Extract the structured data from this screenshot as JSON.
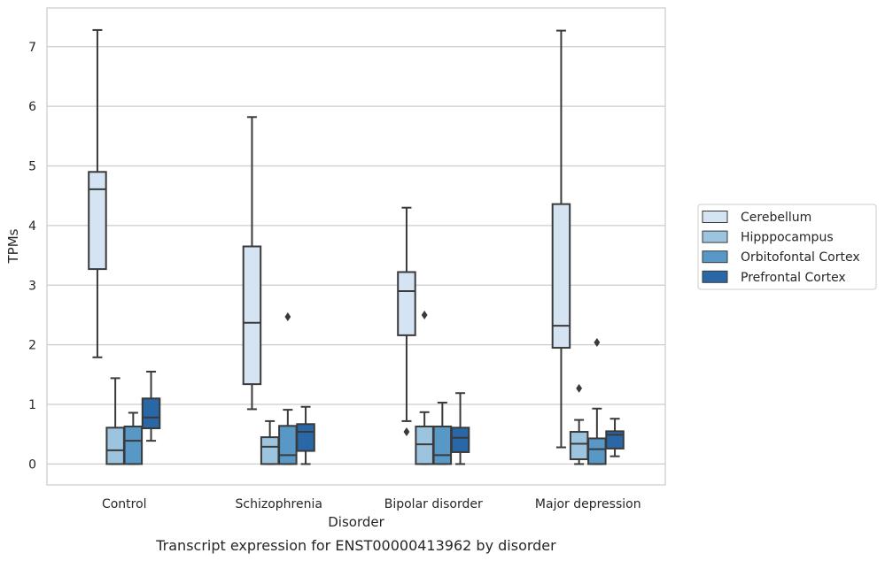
{
  "caption": "Transcript expression for ENST00000413962 by disorder",
  "chart_data": {
    "type": "box",
    "xlabel": "Disorder",
    "ylabel": "TPMs",
    "ylim": [
      -0.35,
      7.65
    ],
    "yticks": [
      0,
      1,
      2,
      3,
      4,
      5,
      6,
      7
    ],
    "grid": "horizontal",
    "legend_position": "right",
    "categories": [
      "Control",
      "Schizophrenia",
      "Bipolar disorder",
      "Major depression"
    ],
    "series": [
      {
        "name": "Cerebellum",
        "color": "#d4e4f2",
        "boxes": [
          {
            "whisker_low": 1.79,
            "q1": 3.27,
            "median": 4.61,
            "q3": 4.9,
            "whisker_high": 7.28,
            "outliers": []
          },
          {
            "whisker_low": 0.92,
            "q1": 1.34,
            "median": 2.37,
            "q3": 3.65,
            "whisker_high": 5.82,
            "outliers": []
          },
          {
            "whisker_low": 0.72,
            "q1": 2.16,
            "median": 2.9,
            "q3": 3.22,
            "whisker_high": 4.3,
            "outliers": [
              0.54
            ]
          },
          {
            "whisker_low": 0.28,
            "q1": 1.95,
            "median": 2.32,
            "q3": 4.36,
            "whisker_high": 7.27,
            "outliers": []
          }
        ]
      },
      {
        "name": "Hipppocampus",
        "color": "#9cc4df",
        "boxes": [
          {
            "whisker_low": 0.0,
            "q1": 0.0,
            "median": 0.23,
            "q3": 0.61,
            "whisker_high": 1.44,
            "outliers": []
          },
          {
            "whisker_low": 0.0,
            "q1": 0.0,
            "median": 0.29,
            "q3": 0.45,
            "whisker_high": 0.72,
            "outliers": []
          },
          {
            "whisker_low": 0.0,
            "q1": 0.0,
            "median": 0.33,
            "q3": 0.63,
            "whisker_high": 0.87,
            "outliers": [
              2.5
            ]
          },
          {
            "whisker_low": 0.0,
            "q1": 0.08,
            "median": 0.34,
            "q3": 0.54,
            "whisker_high": 0.74,
            "outliers": [
              1.27
            ]
          }
        ]
      },
      {
        "name": "Orbitofontal Cortex",
        "color": "#5898c6",
        "boxes": [
          {
            "whisker_low": 0.0,
            "q1": 0.0,
            "median": 0.39,
            "q3": 0.63,
            "whisker_high": 0.86,
            "outliers": []
          },
          {
            "whisker_low": 0.0,
            "q1": 0.0,
            "median": 0.15,
            "q3": 0.64,
            "whisker_high": 0.91,
            "outliers": [
              2.47
            ]
          },
          {
            "whisker_low": 0.0,
            "q1": 0.0,
            "median": 0.15,
            "q3": 0.63,
            "whisker_high": 1.03,
            "outliers": []
          },
          {
            "whisker_low": 0.0,
            "q1": 0.0,
            "median": 0.25,
            "q3": 0.43,
            "whisker_high": 0.93,
            "outliers": [
              2.04
            ]
          }
        ]
      },
      {
        "name": "Prefrontal Cortex",
        "color": "#2a67a6",
        "boxes": [
          {
            "whisker_low": 0.39,
            "q1": 0.6,
            "median": 0.78,
            "q3": 1.1,
            "whisker_high": 1.55,
            "outliers": []
          },
          {
            "whisker_low": 0.0,
            "q1": 0.22,
            "median": 0.54,
            "q3": 0.67,
            "whisker_high": 0.96,
            "outliers": []
          },
          {
            "whisker_low": 0.0,
            "q1": 0.2,
            "median": 0.44,
            "q3": 0.61,
            "whisker_high": 1.19,
            "outliers": []
          },
          {
            "whisker_low": 0.13,
            "q1": 0.26,
            "median": 0.49,
            "q3": 0.55,
            "whisker_high": 0.76,
            "outliers": []
          }
        ]
      }
    ]
  }
}
